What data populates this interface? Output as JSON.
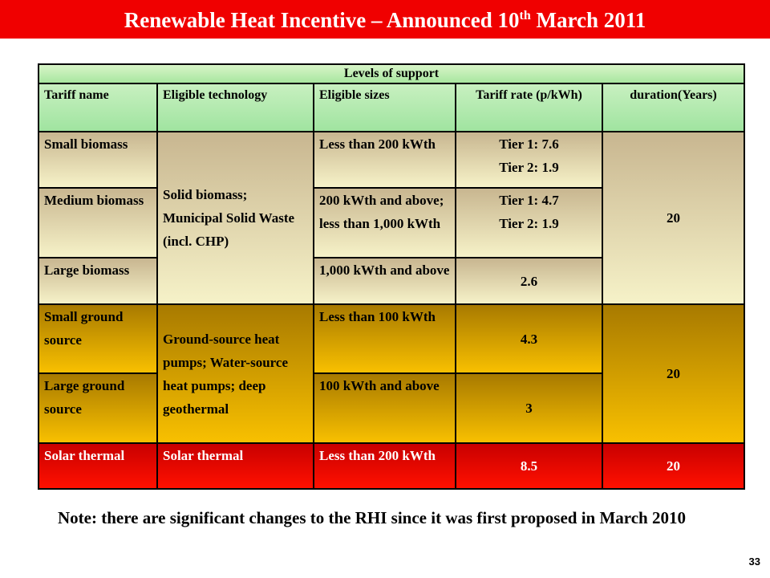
{
  "header": {
    "title_main": "Renewable Heat Incentive – Announced 10",
    "title_sup": "th",
    "title_end": " March 2011"
  },
  "table": {
    "caption": "Levels of support",
    "columns": [
      "Tariff name",
      "Eligible technology",
      "Eligible sizes",
      "Tariff rate (p/kWh)",
      "duration(Years)"
    ],
    "groups": [
      {
        "technology": "Solid biomass; Municipal Solid Waste (incl. CHP)",
        "duration": "20",
        "rows": [
          {
            "name": "Small biomass",
            "sizes": "Less than 200 kWth",
            "rate": [
              "Tier 1: 7.6",
              "Tier 2: 1.9"
            ]
          },
          {
            "name": "Medium biomass",
            "sizes": "200 kWth and above; less than 1,000 kWth",
            "rate": [
              "Tier 1: 4.7",
              "Tier 2: 1.9"
            ]
          },
          {
            "name": "Large biomass",
            "sizes": "1,000 kWth and above",
            "rate": [
              "2.6"
            ]
          }
        ]
      },
      {
        "technology": "Ground-source heat pumps; Water-source heat pumps; deep geothermal",
        "duration": "20",
        "rows": [
          {
            "name": "Small ground source",
            "sizes": "Less than 100 kWth",
            "rate": [
              "4.3"
            ]
          },
          {
            "name": "Large ground source",
            "sizes": "100 kWth and above",
            "rate": [
              "3"
            ]
          }
        ]
      },
      {
        "technology": "Solar thermal",
        "duration": "20",
        "rows": [
          {
            "name": "Solar thermal",
            "sizes": "Less than 200 kWth",
            "rate": [
              "8.5"
            ]
          }
        ]
      }
    ]
  },
  "note": "Note: there are significant changes to the RHI since it was first proposed in March 2010",
  "page_number": "33"
}
